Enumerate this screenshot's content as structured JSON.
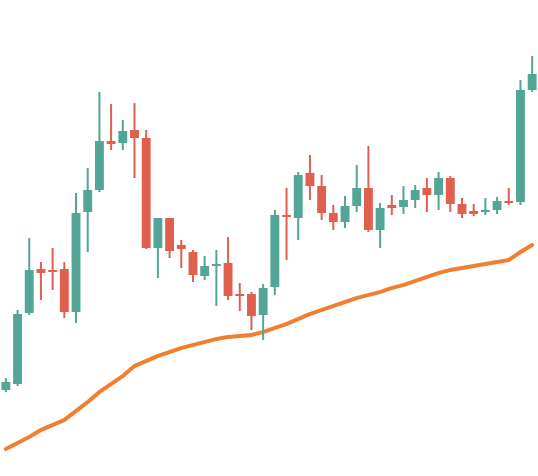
{
  "chart_data": {
    "type": "candlestick",
    "ylim": [
      0,
      476
    ],
    "up_color": "#52a597",
    "down_color": "#e0604f",
    "open": [
      86,
      92,
      163,
      207,
      206,
      207,
      164,
      264,
      286,
      335,
      333,
      346,
      338,
      228,
      258,
      231,
      224,
      200,
      210,
      213,
      182,
      182,
      161,
      189,
      261,
      258,
      303,
      290,
      263,
      254,
      270,
      288,
      246,
      271,
      269,
      276,
      288,
      281,
      298,
      272,
      265,
      264,
      266,
      275,
      274,
      386
    ],
    "high": [
      98,
      166,
      238,
      214,
      228,
      214,
      283,
      308,
      384,
      372,
      356,
      373,
      346,
      258,
      258,
      236,
      226,
      220,
      226,
      239,
      193,
      184,
      192,
      266,
      288,
      304,
      321,
      301,
      271,
      280,
      311,
      330,
      273,
      281,
      290,
      291,
      298,
      304,
      300,
      278,
      272,
      278,
      279,
      288,
      396,
      420
    ],
    "low": [
      84,
      90,
      161,
      176,
      186,
      158,
      153,
      224,
      284,
      326,
      326,
      298,
      227,
      198,
      218,
      208,
      194,
      196,
      170,
      176,
      165,
      146,
      136,
      181,
      216,
      236,
      276,
      256,
      246,
      248,
      264,
      244,
      228,
      261,
      262,
      268,
      264,
      266,
      264,
      258,
      260,
      261,
      262,
      271,
      271,
      384
    ],
    "close": [
      94,
      162,
      206,
      203,
      204,
      164,
      263,
      286,
      335,
      332,
      345,
      338,
      228,
      258,
      225,
      227,
      201,
      210,
      212,
      180,
      180,
      160,
      188,
      261,
      259,
      301,
      290,
      263,
      254,
      270,
      288,
      246,
      268,
      268,
      276,
      286,
      281,
      298,
      272,
      262,
      262,
      266,
      275,
      273,
      386,
      402
    ],
    "moving_average": {
      "color": "#f07f2f",
      "values": [
        27,
        33,
        39,
        46,
        51,
        56,
        65,
        74,
        84,
        92,
        100,
        110,
        115,
        120,
        124,
        128,
        131,
        134,
        137,
        139,
        140,
        141,
        144,
        148,
        152,
        157,
        162,
        166,
        170,
        174,
        178,
        181,
        184,
        188,
        191,
        195,
        199,
        203,
        206,
        208,
        210,
        212,
        214,
        216,
        224,
        231
      ]
    }
  }
}
